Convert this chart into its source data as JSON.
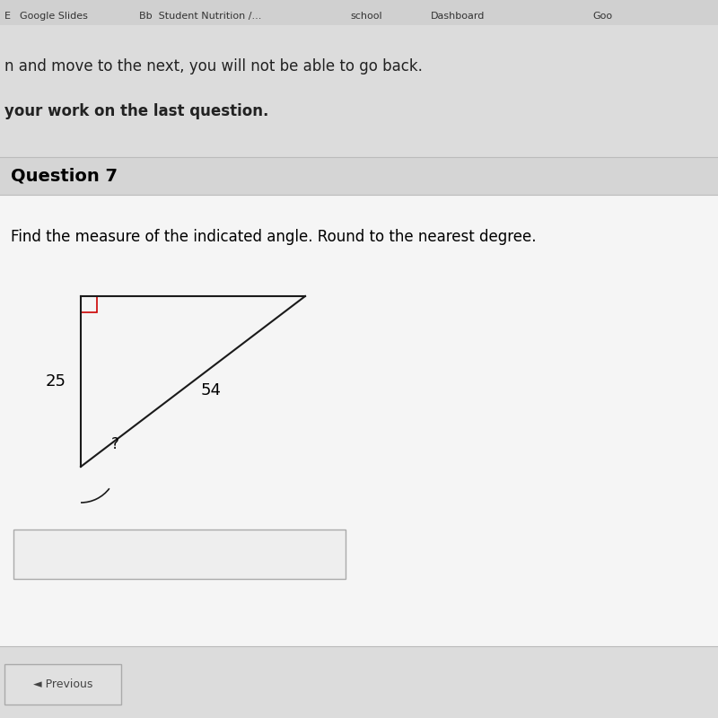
{
  "fig_width": 8.0,
  "fig_height": 8.0,
  "dpi": 100,
  "bg_patterned": "#dcdcdc",
  "white_panel": "#f5f5f5",
  "header_bg": "#d8d8d8",
  "browser_bar_bg": "#e8e8e8",
  "separator_color": "#bbbbbb",
  "header_text": "Question 7",
  "header_fontsize": 14,
  "question_text": "Find the measure of the indicated angle. Round to the nearest degree.",
  "question_fontsize": 12,
  "browser_line1": "n and move to the next, you will not be able to go back.",
  "browser_line2": "your work on the last question.",
  "browser_tabs": "   E      Google Slides    Bb  Student Nutrition /...      school    Dashboard    Goo",
  "label_vertical": "25",
  "label_horizontal": "54",
  "label_angle": "?",
  "right_angle_color": "#cc0000",
  "triangle_color": "#1a1a1a",
  "triangle_lw": 1.5,
  "input_box_color": "#eeeeee",
  "input_box_border": "#aaaaaa",
  "note_bold": "your work on the last question."
}
